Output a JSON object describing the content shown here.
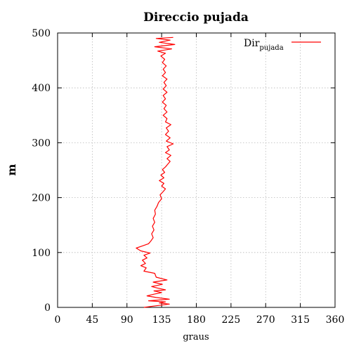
{
  "chart_data": {
    "type": "line",
    "title": "Direccio pujada",
    "xlabel": "graus",
    "ylabel": "m",
    "xlim": [
      0,
      360
    ],
    "ylim": [
      0,
      500
    ],
    "xticks": [
      0,
      45,
      90,
      135,
      180,
      225,
      270,
      315,
      360
    ],
    "yticks": [
      0,
      100,
      200,
      300,
      400,
      500
    ],
    "grid": true,
    "legend_position": "top-right",
    "series": [
      {
        "name": "Dir",
        "name_subscript": "pujada",
        "color": "#ff0000",
        "points": [
          [
            112,
            0
          ],
          [
            128,
            3
          ],
          [
            145,
            6
          ],
          [
            132,
            8
          ],
          [
            140,
            10
          ],
          [
            118,
            12
          ],
          [
            145,
            15
          ],
          [
            128,
            18
          ],
          [
            116,
            21
          ],
          [
            125,
            24
          ],
          [
            135,
            27
          ],
          [
            125,
            30
          ],
          [
            140,
            32
          ],
          [
            130,
            35
          ],
          [
            122,
            38
          ],
          [
            136,
            42
          ],
          [
            124,
            46
          ],
          [
            142,
            50
          ],
          [
            128,
            55
          ],
          [
            126,
            62
          ],
          [
            112,
            66
          ],
          [
            115,
            72
          ],
          [
            108,
            76
          ],
          [
            114,
            80
          ],
          [
            110,
            86
          ],
          [
            116,
            90
          ],
          [
            112,
            95
          ],
          [
            120,
            99
          ],
          [
            108,
            103
          ],
          [
            102,
            108
          ],
          [
            110,
            112
          ],
          [
            118,
            116
          ],
          [
            121,
            121
          ],
          [
            124,
            127
          ],
          [
            122,
            134
          ],
          [
            125,
            141
          ],
          [
            123,
            148
          ],
          [
            126,
            155
          ],
          [
            124,
            162
          ],
          [
            127,
            170
          ],
          [
            126,
            177
          ],
          [
            129,
            184
          ],
          [
            131,
            191
          ],
          [
            135,
            198
          ],
          [
            133,
            205
          ],
          [
            137,
            211
          ],
          [
            140,
            216
          ],
          [
            135,
            221
          ],
          [
            138,
            226
          ],
          [
            132,
            231
          ],
          [
            138,
            236
          ],
          [
            134,
            241
          ],
          [
            139,
            246
          ],
          [
            136,
            251
          ],
          [
            140,
            256
          ],
          [
            143,
            261
          ],
          [
            146,
            266
          ],
          [
            142,
            271
          ],
          [
            147,
            277
          ],
          [
            140,
            282
          ],
          [
            145,
            287
          ],
          [
            142,
            293
          ],
          [
            150,
            298
          ],
          [
            141,
            303
          ],
          [
            146,
            309
          ],
          [
            140,
            315
          ],
          [
            144,
            321
          ],
          [
            141,
            327
          ],
          [
            147,
            333
          ],
          [
            140,
            338
          ],
          [
            142,
            344
          ],
          [
            137,
            350
          ],
          [
            142,
            356
          ],
          [
            138,
            362
          ],
          [
            141,
            368
          ],
          [
            136,
            374
          ],
          [
            140,
            380
          ],
          [
            137,
            386
          ],
          [
            142,
            392
          ],
          [
            137,
            398
          ],
          [
            141,
            404
          ],
          [
            138,
            410
          ],
          [
            142,
            416
          ],
          [
            136,
            422
          ],
          [
            140,
            428
          ],
          [
            137,
            434
          ],
          [
            141,
            440
          ],
          [
            136,
            446
          ],
          [
            139,
            452
          ],
          [
            134,
            458
          ],
          [
            140,
            463
          ],
          [
            130,
            467
          ],
          [
            148,
            471
          ],
          [
            126,
            475
          ],
          [
            152,
            479
          ],
          [
            132,
            483
          ],
          [
            146,
            487
          ],
          [
            128,
            490
          ],
          [
            150,
            492
          ]
        ]
      }
    ]
  }
}
